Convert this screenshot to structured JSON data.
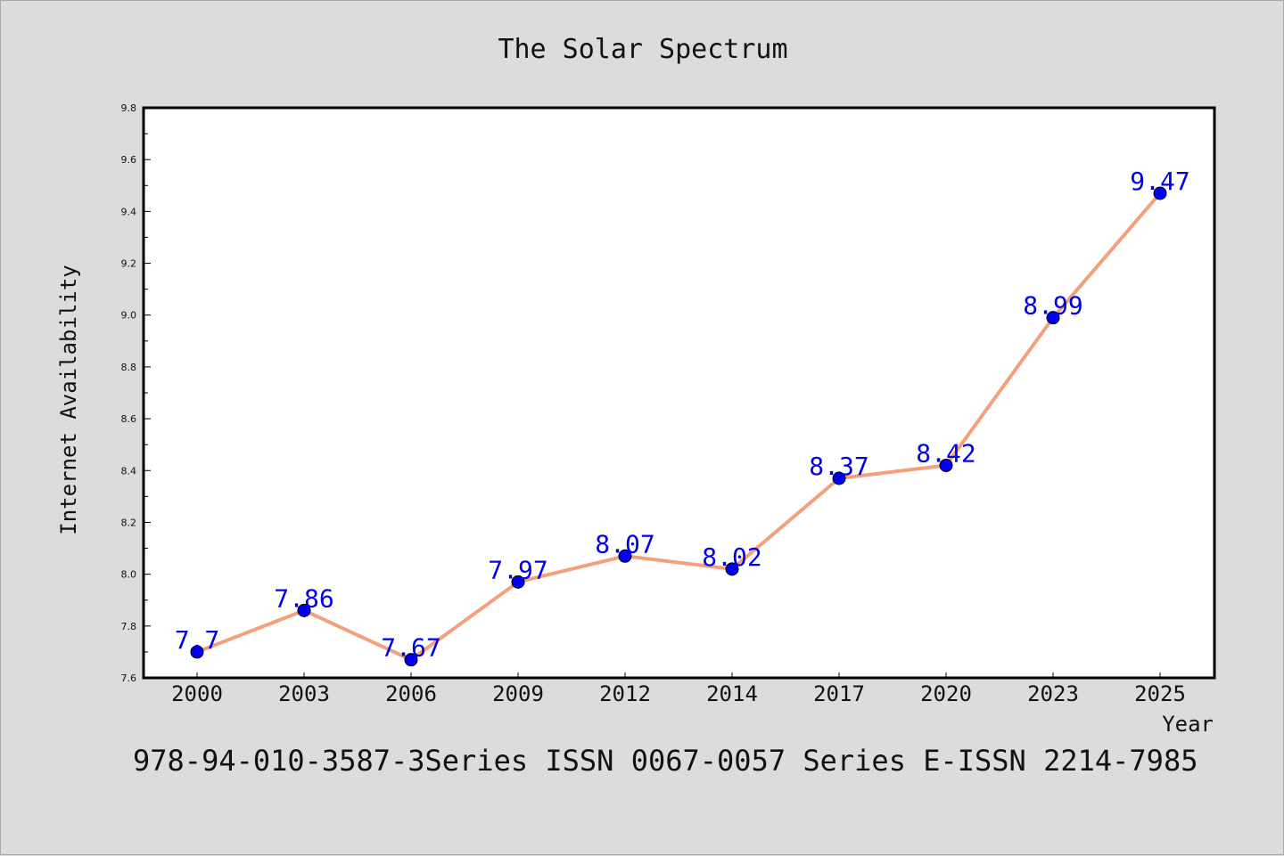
{
  "footer_text": "978-94-010-3587-3Series ISSN 0067-0057 Series E-ISSN 2214-7985",
  "colors": {
    "background": "#dcdcdc",
    "plot_background": "#ffffff",
    "line": "#f4a07c",
    "marker": "#0000ee",
    "data_label": "#0000ee"
  },
  "chart_data": {
    "type": "line",
    "title": "The Solar Spectrum",
    "xlabel": "Year",
    "ylabel": "Internet Availability",
    "categories": [
      "2000",
      "2003",
      "2006",
      "2009",
      "2012",
      "2014",
      "2017",
      "2020",
      "2023",
      "2025"
    ],
    "series": [
      {
        "values": [
          7.7,
          7.86,
          7.67,
          7.97,
          8.07,
          8.02,
          8.37,
          8.42,
          8.99,
          9.47
        ]
      }
    ],
    "data_labels": [
      "7.7",
      "7.86",
      "7.67",
      "7.97",
      "8.07",
      "8.02",
      "8.37",
      "8.42",
      "8.99",
      "9.47"
    ],
    "ylim": [
      7.6,
      9.8
    ],
    "yticks": [
      "7.6",
      "7.8",
      "8.0",
      "8.2",
      "8.4",
      "8.6",
      "8.8",
      "9.0",
      "9.2",
      "9.4",
      "9.6",
      "9.8"
    ],
    "grid": false,
    "legend": "none",
    "marker": "circle"
  }
}
